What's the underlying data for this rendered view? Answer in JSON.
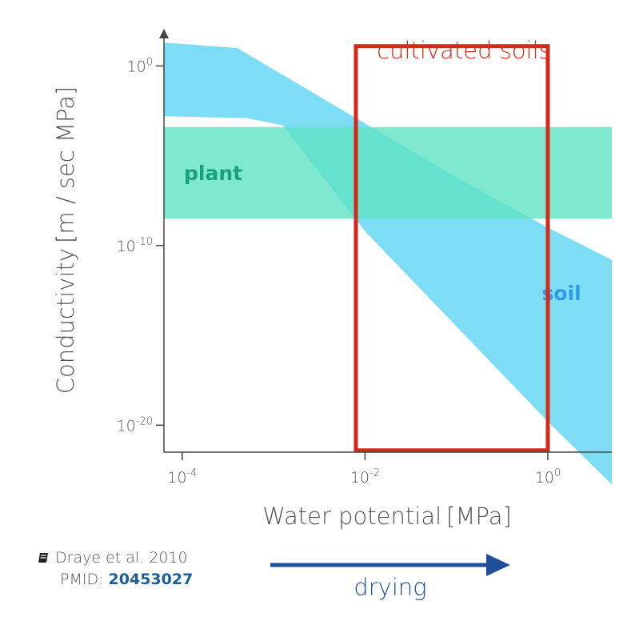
{
  "chart_data": {
    "type": "area",
    "x_scale": "log10",
    "y_scale": "log10",
    "xlabel": {
      "main": "Water potential",
      "unit": "MPa"
    },
    "ylabel": {
      "main": "Conductivity",
      "unit": "m / sec MPa"
    },
    "x_ticks": [
      {
        "base": "10",
        "exp": "-4",
        "value": 0.0001
      },
      {
        "base": "10",
        "exp": "-2",
        "value": 0.01
      },
      {
        "base": "10",
        "exp": "0",
        "value": 1
      }
    ],
    "y_ticks": [
      {
        "base": "10",
        "exp": "0",
        "value": 1
      },
      {
        "base": "10",
        "exp": "-10",
        "value": 1e-10
      },
      {
        "base": "10",
        "exp": "-20",
        "value": 1e-20
      }
    ],
    "xlim_log10": [
      -4.2,
      0.7
    ],
    "ylim_log10": [
      -21.5,
      1.8
    ],
    "series": [
      {
        "name": "soil",
        "color": "#5cd5f1",
        "upper": [
          [
            -4.2,
            1.3
          ],
          [
            -3.4,
            1.0
          ],
          [
            -2.0,
            -3.2
          ],
          [
            -1.0,
            -6.2
          ],
          [
            0.0,
            -9.0
          ],
          [
            0.7,
            -10.8
          ]
        ],
        "lower": [
          [
            -4.2,
            -2.8
          ],
          [
            -3.3,
            -2.9
          ],
          [
            -2.9,
            -3.3
          ],
          [
            -2.0,
            -9.2
          ],
          [
            -1.0,
            -14.5
          ],
          [
            0.0,
            -19.8
          ],
          [
            0.7,
            -23.3
          ]
        ]
      },
      {
        "name": "plant",
        "color": "#5ee3c3",
        "y_range_log10": [
          -8.5,
          -3.4
        ]
      }
    ],
    "annotation": {
      "label": "cultivated soils",
      "color": "#d42a1a",
      "x_range_log10": [
        -2.1,
        0.0
      ],
      "y_range_log10": [
        -21.4,
        1.1
      ]
    },
    "legend": "none"
  },
  "citation": {
    "source": "Draye et al. 2010",
    "pmid_label": "PMID:",
    "pmid": "20453027"
  },
  "direction": {
    "label": "drying",
    "color": "#1f4f99"
  }
}
